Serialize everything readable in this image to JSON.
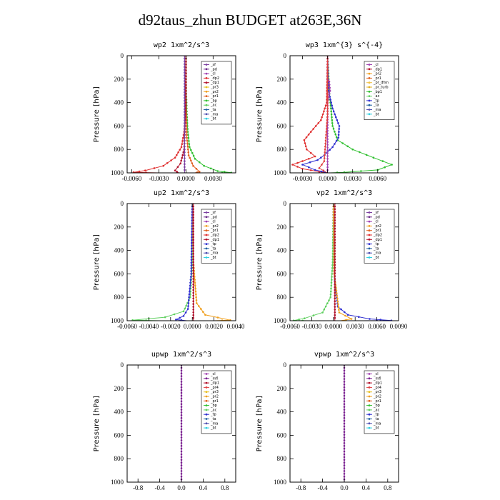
{
  "title": "d92taus_zhun  BUDGET at263E,36N",
  "colors": {
    "sf": "#7b3fa0",
    "pd": "#6b2b8a",
    "cl": "#a040b0",
    "dp1": "#b0102a",
    "dp2": "#e03030",
    "pr1": "#e06020",
    "pr2": "#f0a020",
    "pr3": "#e8c020",
    "pr4": "#e04040",
    "bp": "#30c030",
    "ac": "#60d060",
    "tp": "#3030d0",
    "ta": "#2060a0",
    "ma": "#5050b0",
    "bt": "#30d0e0",
    "mfl": "#7a2090",
    "bp1": "#30c030",
    "pr_dfsn": "#f0c040",
    "pr_turb": "#e0b020"
  },
  "chart_data": [
    {
      "type": "line",
      "title": "wp2   1xm^2/s^3",
      "ylabel": "Pressure  [hPa]",
      "xlim": [
        -0.0065,
        0.0055
      ],
      "ylim": [
        1000,
        0
      ],
      "xticks": [
        -0.006,
        -0.003,
        0.0,
        0.003
      ],
      "xtick_labels": [
        "-0.0060",
        "-0.0030",
        "0.0000",
        "0.0030"
      ],
      "yticks": [
        0,
        200,
        400,
        600,
        800,
        1000
      ],
      "legend": [
        "_sf",
        "_pd",
        "_cl",
        "_dp2",
        "_dp1",
        "_pr3",
        "_pr2",
        "_pr1",
        "_bp",
        "_ac",
        "_ta",
        "_ma",
        "_bt"
      ],
      "series": [
        {
          "name": "_dp2",
          "key": "dp2",
          "points": [
            [
              0,
              0
            ],
            [
              -2e-05,
              300
            ],
            [
              -8e-05,
              500
            ],
            [
              -0.0002,
              650
            ],
            [
              -0.0005,
              780
            ],
            [
              -0.0012,
              870
            ],
            [
              -0.0025,
              940
            ],
            [
              -0.0045,
              980
            ],
            [
              -0.0058,
              995
            ],
            [
              -0.003,
              1000
            ]
          ]
        },
        {
          "name": "_bp",
          "key": "bp",
          "points": [
            [
              0,
              0
            ],
            [
              2e-05,
              300
            ],
            [
              0.0001,
              500
            ],
            [
              0.0002,
              650
            ],
            [
              0.0004,
              780
            ],
            [
              0.001,
              880
            ],
            [
              0.002,
              940
            ],
            [
              0.0035,
              985
            ],
            [
              0.005,
              998
            ],
            [
              0.003,
              1000
            ]
          ]
        },
        {
          "name": "_pr1",
          "key": "pr1",
          "points": [
            [
              0,
              0
            ],
            [
              0.0,
              400
            ],
            [
              0.0001,
              700
            ],
            [
              0.0003,
              850
            ],
            [
              0.0008,
              940
            ],
            [
              0.0015,
              990
            ],
            [
              0.001,
              1000
            ]
          ]
        },
        {
          "name": "_dp1",
          "key": "dp1",
          "points": [
            [
              0,
              0
            ],
            [
              -0.0,
              400
            ],
            [
              -0.0002,
              800
            ],
            [
              -0.0006,
              920
            ],
            [
              -0.0012,
              980
            ],
            [
              -0.0008,
              1000
            ]
          ]
        },
        {
          "name": "_sf",
          "key": "sf",
          "points": [
            [
              -0.00015,
              0
            ],
            [
              -0.00015,
              600
            ],
            [
              -0.00015,
              900
            ],
            [
              -0.00015,
              1000
            ]
          ]
        }
      ]
    },
    {
      "type": "line",
      "title": "wp3   1xm^{3} s^{-4}",
      "ylabel": "Pressure  [hPa]",
      "xlim": [
        -0.0045,
        0.0085
      ],
      "ylim": [
        1000,
        0
      ],
      "xticks": [
        -0.003,
        0.0,
        0.003,
        0.006
      ],
      "xtick_labels": [
        "-0.0030",
        "0.0000",
        "0.0030",
        "0.0060"
      ],
      "yticks": [
        0,
        200,
        400,
        600,
        800,
        1000
      ],
      "legend": [
        "_cl",
        "_dp1",
        "_pr2",
        "_pr1",
        "_pr_dfsn",
        "_pr_turb",
        "_bp1",
        "_ac",
        "_tp",
        "_ta",
        "_ma",
        "_bt"
      ],
      "series": [
        {
          "name": "_bp1",
          "key": "bp1",
          "points": [
            [
              0,
              0
            ],
            [
              0.0002,
              300
            ],
            [
              0.0004,
              450
            ],
            [
              0.0006,
              600
            ],
            [
              0.0012,
              720
            ],
            [
              0.003,
              800
            ],
            [
              0.0055,
              870
            ],
            [
              0.0077,
              930
            ],
            [
              0.006,
              975
            ],
            [
              0.002,
              995
            ],
            [
              0.0003,
              1000
            ]
          ]
        },
        {
          "name": "_pr1",
          "key": "dp2",
          "points": [
            [
              0,
              0
            ],
            [
              -0.0001,
              400
            ],
            [
              -0.0008,
              550
            ],
            [
              -0.002,
              650
            ],
            [
              -0.0028,
              720
            ],
            [
              -0.0025,
              800
            ],
            [
              -0.0015,
              860
            ],
            [
              -0.003,
              900
            ],
            [
              -0.0042,
              930
            ],
            [
              -0.003,
              965
            ],
            [
              -0.001,
              990
            ],
            [
              0,
              1000
            ]
          ]
        },
        {
          "name": "_tp",
          "key": "tp",
          "points": [
            [
              0,
              0
            ],
            [
              0.0001,
              300
            ],
            [
              0.0006,
              450
            ],
            [
              0.0014,
              600
            ],
            [
              0.0013,
              700
            ],
            [
              0.0006,
              780
            ],
            [
              -0.0004,
              850
            ],
            [
              -0.0012,
              890
            ],
            [
              -0.003,
              930
            ],
            [
              -0.0015,
              975
            ],
            [
              0,
              1000
            ]
          ]
        },
        {
          "name": "_cl",
          "key": "cl",
          "points": [
            [
              0,
              0
            ],
            [
              0,
              200
            ],
            [
              0.0002,
              220
            ],
            [
              0.0003,
              300
            ],
            [
              0,
              400
            ],
            [
              0,
              1000
            ]
          ]
        },
        {
          "name": "_pr2",
          "key": "pr4",
          "points": [
            [
              0,
              0
            ],
            [
              0,
              500
            ],
            [
              -0.0004,
              900
            ],
            [
              -0.001,
              960
            ],
            [
              0,
              1000
            ]
          ]
        }
      ]
    },
    {
      "type": "line",
      "title": "up2   1xm^2/s^3",
      "ylabel": "Pressure  [hPa]",
      "xlim": [
        -0.006,
        0.004
      ],
      "ylim": [
        1000,
        0
      ],
      "xticks": [
        -0.006,
        -0.004,
        -0.002,
        0.0,
        0.002,
        0.004
      ],
      "xtick_labels": [
        "-0.0060",
        "-0.0040",
        "-0.0020",
        "0.0000",
        "0.0020",
        "0.0040"
      ],
      "yticks": [
        0,
        200,
        400,
        600,
        800,
        1000
      ],
      "legend": [
        "_sf",
        "_pd",
        "_cl",
        "_pr2",
        "_pr1",
        "_dp2",
        "_dp1",
        "_tp",
        "_ta",
        "_ma",
        "_bt"
      ],
      "series": [
        {
          "name": "_dp1",
          "key": "ac",
          "points": [
            [
              0,
              0
            ],
            [
              -0.0,
              500
            ],
            [
              -0.0002,
              800
            ],
            [
              -0.0008,
              920
            ],
            [
              -0.0025,
              970
            ],
            [
              -0.0055,
              995
            ],
            [
              -0.003,
              1000
            ]
          ]
        },
        {
          "name": "_pr2",
          "key": "pr2",
          "points": [
            [
              0,
              0
            ],
            [
              0.0001,
              500
            ],
            [
              0.0004,
              850
            ],
            [
              0.0012,
              950
            ],
            [
              0.0035,
              995
            ],
            [
              0.002,
              1000
            ]
          ]
        },
        {
          "name": "_tp",
          "key": "tp",
          "points": [
            [
              0,
              0
            ],
            [
              -0.0001,
              600
            ],
            [
              -0.0004,
              900
            ],
            [
              -0.0008,
              960
            ],
            [
              -0.0015,
              990
            ],
            [
              -0.0005,
              1000
            ]
          ]
        },
        {
          "name": "_sf",
          "key": "dp1",
          "points": [
            [
              0.0001,
              0
            ],
            [
              0.0001,
              500
            ],
            [
              0.0001,
              1000
            ]
          ]
        }
      ]
    },
    {
      "type": "line",
      "title": "vp2   1xm^2/s^3",
      "ylabel": "Pressure  [hPa]",
      "xlim": [
        -0.006,
        0.009
      ],
      "ylim": [
        1000,
        0
      ],
      "xticks": [
        -0.006,
        -0.003,
        0.0,
        0.003,
        0.006,
        0.009
      ],
      "xtick_labels": [
        "-0.0060",
        "-0.0030",
        "0.0000",
        "0.0030",
        "0.0060",
        "0.0090"
      ],
      "yticks": [
        0,
        200,
        400,
        600,
        800,
        1000
      ],
      "legend": [
        "_sf",
        "_pd",
        "_cl",
        "_pr2",
        "_pr1",
        "_dp2",
        "_dp1",
        "_tp",
        "_ta",
        "_ma",
        "_bt"
      ],
      "series": [
        {
          "name": "_dp1",
          "key": "ac",
          "points": [
            [
              0,
              0
            ],
            [
              -0.0001,
              500
            ],
            [
              -0.0004,
              800
            ],
            [
              -0.0015,
              930
            ],
            [
              -0.004,
              980
            ],
            [
              -0.0055,
              998
            ],
            [
              -0.003,
              1000
            ]
          ]
        },
        {
          "name": "_tp",
          "key": "tp",
          "points": [
            [
              0,
              0
            ],
            [
              0.0001,
              600
            ],
            [
              0.0006,
              880
            ],
            [
              0.002,
              950
            ],
            [
              0.005,
              985
            ],
            [
              0.008,
              998
            ],
            [
              0.004,
              1000
            ]
          ]
        },
        {
          "name": "_pr2",
          "key": "pr2",
          "points": [
            [
              0,
              0
            ],
            [
              0.0001,
              600
            ],
            [
              0.0008,
              930
            ],
            [
              0.0025,
              985
            ],
            [
              0.001,
              1000
            ]
          ]
        },
        {
          "name": "_sf",
          "key": "dp1",
          "points": [
            [
              0.0002,
              0
            ],
            [
              0.0002,
              500
            ],
            [
              0.0002,
              1000
            ]
          ]
        }
      ]
    },
    {
      "type": "line",
      "title": "upwp   1xm^2/s^3",
      "ylabel": "Pressure  [hPa]",
      "xlim": [
        -1.0,
        1.0
      ],
      "ylim": [
        1000,
        0
      ],
      "xticks": [
        -0.8,
        -0.4,
        0.0,
        0.4,
        0.8
      ],
      "xtick_labels": [
        "-0.8",
        "-0.4",
        "0.0",
        "0.4",
        "0.8"
      ],
      "yticks": [
        0,
        200,
        400,
        600,
        800,
        1000
      ],
      "legend": [
        "_cl",
        "_mfl",
        "_dp1",
        "_pr4",
        "_pr3",
        "_pr2",
        "_pr1",
        "_bp",
        "_ac",
        "_tp",
        "_ta",
        "_ma",
        "_bt"
      ],
      "series": [
        {
          "name": "_mfl",
          "key": "mfl",
          "points": [
            [
              0,
              0
            ],
            [
              0,
              500
            ],
            [
              0,
              1000
            ]
          ]
        }
      ]
    },
    {
      "type": "line",
      "title": "vpwp   1xm^2/s^3",
      "ylabel": "Pressure  [hPa]",
      "xlim": [
        -1.0,
        1.0
      ],
      "ylim": [
        1000,
        0
      ],
      "xticks": [
        -0.8,
        -0.4,
        0.0,
        0.4,
        0.8
      ],
      "xtick_labels": [
        "-0.8",
        "-0.4",
        "0.0",
        "0.4",
        "0.8"
      ],
      "yticks": [
        0,
        200,
        400,
        600,
        800,
        1000
      ],
      "legend": [
        "_cl",
        "_mfl",
        "_dp1",
        "_pr4",
        "_pr3",
        "_pr2",
        "_pr1",
        "_bp",
        "_ac",
        "_tp",
        "_ta",
        "_ma",
        "_bt"
      ],
      "series": [
        {
          "name": "_mfl",
          "key": "mfl",
          "points": [
            [
              0,
              0
            ],
            [
              0,
              500
            ],
            [
              0,
              1000
            ]
          ]
        }
      ]
    }
  ]
}
